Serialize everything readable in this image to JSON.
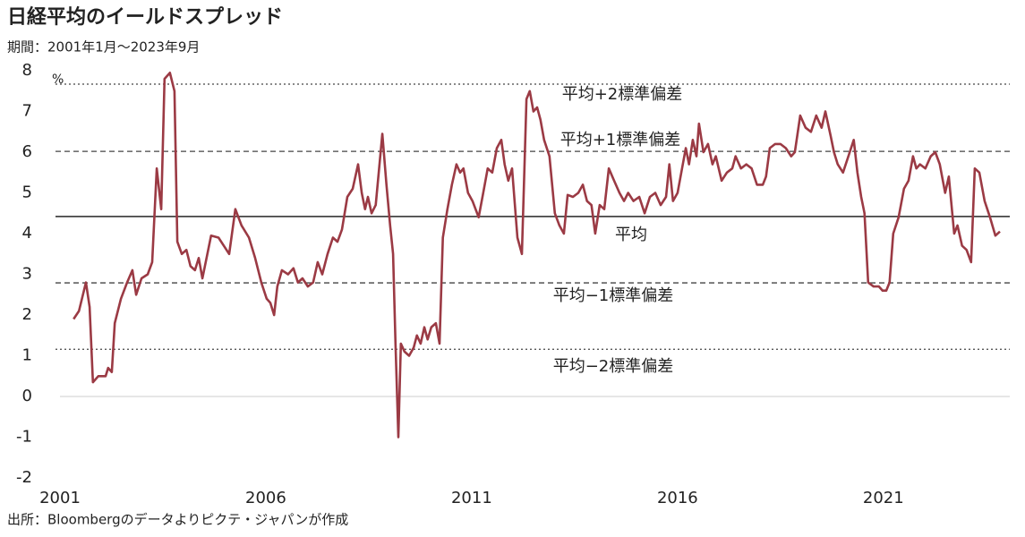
{
  "chart_data": {
    "type": "line",
    "title": "日経平均のイールドスプレッド",
    "subtitle": "期間：2001年1月～2023年9月",
    "source": "出所：Bloombergのデータよりピクテ・ジャパンが作成",
    "ylabel": "%",
    "xlim": [
      2001,
      2024.07
    ],
    "xticks": [
      2001,
      2006,
      2011,
      2016,
      2021
    ],
    "ylim": [
      -2,
      8
    ],
    "yticks": [
      -2,
      -1,
      0,
      1,
      2,
      3,
      4,
      5,
      6,
      7,
      8
    ],
    "negative_tick_color": "#e00000",
    "reference_lines": [
      {
        "label": "平均+2標準偏差",
        "value": 7.67,
        "style": "dotted"
      },
      {
        "label": "平均+1標準偏差",
        "value": 6.02,
        "style": "dashed"
      },
      {
        "label": "平均",
        "value": 4.42,
        "style": "solid"
      },
      {
        "label": "平均−1標準偏差",
        "value": 2.79,
        "style": "dashed"
      },
      {
        "label": "平均−2標準偏差",
        "value": 1.16,
        "style": "dotted"
      }
    ],
    "series": [
      {
        "color": "#9b3a44",
        "x": [
          2001.33,
          2001.46,
          2001.63,
          2001.72,
          2001.8,
          2001.93,
          2002.11,
          2002.17,
          2002.26,
          2002.33,
          2002.48,
          2002.63,
          2002.76,
          2002.85,
          2002.98,
          2003.13,
          2003.24,
          2003.35,
          2003.46,
          2003.54,
          2003.67,
          2003.78,
          2003.85,
          2003.96,
          2004.07,
          2004.17,
          2004.28,
          2004.37,
          2004.46,
          2004.54,
          2004.67,
          2004.85,
          2004.98,
          2005.11,
          2005.26,
          2005.41,
          2005.59,
          2005.74,
          2005.89,
          2006.02,
          2006.11,
          2006.2,
          2006.28,
          2006.39,
          2006.54,
          2006.67,
          2006.78,
          2006.89,
          2007.02,
          2007.15,
          2007.26,
          2007.37,
          2007.5,
          2007.63,
          2007.74,
          2007.85,
          2007.98,
          2008.11,
          2008.24,
          2008.33,
          2008.41,
          2008.48,
          2008.57,
          2008.67,
          2008.83,
          2008.93,
          2009.02,
          2009.09,
          2009.15,
          2009.22,
          2009.28,
          2009.37,
          2009.48,
          2009.59,
          2009.67,
          2009.76,
          2009.85,
          2009.93,
          2010.02,
          2010.13,
          2010.22,
          2010.3,
          2010.41,
          2010.52,
          2010.63,
          2010.72,
          2010.8,
          2010.91,
          2011.02,
          2011.17,
          2011.28,
          2011.39,
          2011.5,
          2011.61,
          2011.72,
          2011.8,
          2011.89,
          2011.98,
          2012.11,
          2012.22,
          2012.33,
          2012.41,
          2012.5,
          2012.59,
          2012.67,
          2012.76,
          2012.89,
          2013.02,
          2013.13,
          2013.24,
          2013.33,
          2013.46,
          2013.59,
          2013.7,
          2013.8,
          2013.91,
          2014.0,
          2014.11,
          2014.22,
          2014.33,
          2014.46,
          2014.59,
          2014.7,
          2014.8,
          2014.93,
          2015.07,
          2015.2,
          2015.33,
          2015.46,
          2015.59,
          2015.72,
          2015.8,
          2015.89,
          2016.0,
          2016.11,
          2016.2,
          2016.28,
          2016.37,
          2016.46,
          2016.52,
          2016.63,
          2016.74,
          2016.85,
          2016.93,
          2017.07,
          2017.2,
          2017.33,
          2017.41,
          2017.54,
          2017.67,
          2017.8,
          2017.93,
          2018.07,
          2018.15,
          2018.24,
          2018.37,
          2018.5,
          2018.63,
          2018.76,
          2018.85,
          2018.98,
          2019.11,
          2019.24,
          2019.37,
          2019.5,
          2019.59,
          2019.72,
          2019.8,
          2019.89,
          2020.02,
          2020.15,
          2020.28,
          2020.37,
          2020.46,
          2020.54,
          2020.63,
          2020.76,
          2020.89,
          2020.98,
          2021.07,
          2021.15,
          2021.24,
          2021.37,
          2021.5,
          2021.61,
          2021.72,
          2021.8,
          2021.89,
          2022.02,
          2022.15,
          2022.26,
          2022.37,
          2022.5,
          2022.59,
          2022.72,
          2022.8,
          2022.91,
          2023.02,
          2023.13,
          2023.22,
          2023.33,
          2023.46,
          2023.59,
          2023.72,
          2023.83
        ],
        "values": [
          1.9,
          2.1,
          2.8,
          2.2,
          0.35,
          0.5,
          0.5,
          0.7,
          0.6,
          1.8,
          2.4,
          2.8,
          3.1,
          2.5,
          2.9,
          3.0,
          3.3,
          5.6,
          4.6,
          7.8,
          7.95,
          7.5,
          3.8,
          3.5,
          3.6,
          3.2,
          3.1,
          3.4,
          2.9,
          3.3,
          3.95,
          3.9,
          3.7,
          3.5,
          4.6,
          4.2,
          3.9,
          3.4,
          2.8,
          2.4,
          2.3,
          2.0,
          2.7,
          3.1,
          3.0,
          3.15,
          2.8,
          2.9,
          2.7,
          2.8,
          3.3,
          3.0,
          3.5,
          3.9,
          3.8,
          4.1,
          4.9,
          5.1,
          5.7,
          5.0,
          4.6,
          4.9,
          4.5,
          4.7,
          6.45,
          5.2,
          4.2,
          3.5,
          1.3,
          -1.0,
          1.3,
          1.1,
          1.0,
          1.2,
          1.5,
          1.3,
          1.7,
          1.4,
          1.7,
          1.8,
          1.3,
          3.9,
          4.6,
          5.2,
          5.7,
          5.5,
          5.6,
          5.0,
          4.8,
          4.4,
          5.0,
          5.6,
          5.5,
          6.1,
          6.3,
          5.7,
          5.3,
          5.6,
          3.9,
          3.5,
          7.3,
          7.5,
          7.0,
          7.1,
          6.8,
          6.3,
          5.9,
          4.5,
          4.2,
          4.0,
          4.95,
          4.9,
          5.0,
          5.2,
          4.8,
          4.7,
          4.0,
          4.7,
          4.6,
          5.6,
          5.3,
          5.0,
          4.8,
          5.0,
          4.8,
          4.9,
          4.5,
          4.9,
          5.0,
          4.7,
          4.9,
          5.7,
          4.8,
          5.0,
          5.6,
          6.1,
          5.7,
          6.3,
          5.9,
          6.7,
          6.0,
          6.2,
          5.7,
          5.9,
          5.3,
          5.5,
          5.6,
          5.9,
          5.6,
          5.7,
          5.6,
          5.2,
          5.2,
          5.4,
          6.1,
          6.2,
          6.2,
          6.1,
          5.9,
          6.0,
          6.9,
          6.6,
          6.5,
          6.9,
          6.6,
          7.0,
          6.4,
          6.0,
          5.7,
          5.5,
          5.9,
          6.3,
          5.5,
          4.9,
          4.5,
          2.8,
          2.7,
          2.7,
          2.6,
          2.6,
          2.8,
          4.0,
          4.4,
          5.1,
          5.3,
          5.9,
          5.6,
          5.7,
          5.6,
          5.9,
          6.0,
          5.7,
          5.0,
          5.4,
          4.0,
          4.2,
          3.7,
          3.6,
          3.3,
          5.6,
          5.5,
          4.8,
          4.4,
          3.95,
          4.05
        ]
      }
    ]
  }
}
